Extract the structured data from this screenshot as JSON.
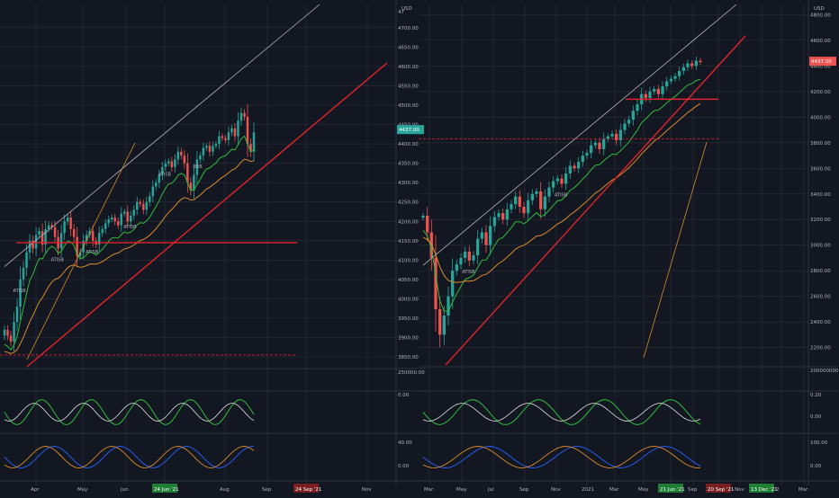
{
  "colors": {
    "background": "#131722",
    "grid": "#2a2e39",
    "up": "#26a69a",
    "down": "#ef5350",
    "trend_red": "#e0242b",
    "ema_green": "#2fbd3a",
    "sma_orange": "#d98b2b",
    "channel": "#b2b5be",
    "axis_text": "#b2b5be",
    "badge_green": "#1e7e34",
    "badge_red": "#7a1f1f"
  },
  "chart_data": [
    {
      "type": "line",
      "name": "left-panel",
      "title": "",
      "currency": "USD",
      "last_price": 4437.0,
      "last_price_label": "4437.00",
      "ylim": [
        3820,
        4760
      ],
      "yticks": [
        3850,
        3900,
        3950,
        4000,
        4050,
        4100,
        4150,
        4200,
        4250,
        4300,
        4350,
        4400,
        4450,
        4500,
        4550,
        4600,
        4650,
        4700
      ],
      "ytick_labels": [
        "3850.00",
        "3900.00",
        "3950.00",
        "4000.00",
        "4050.00",
        "4100.00",
        "4150.00",
        "4200.00",
        "4250.00",
        "4300.00",
        "4350.00",
        "4400.00",
        "4450.00",
        "4500.00",
        "4550.00",
        "4600.00",
        "4650.00",
        "4700.00"
      ],
      "ytop_label": "47",
      "xticks": [
        "Apr",
        "May",
        "Jun",
        "24 Jun '21",
        "Aug",
        "Sep",
        "24 Sep '21",
        "Nov"
      ],
      "highlight_x": [
        "24 Jun '21",
        "24 Sep '21"
      ],
      "price_series": [
        3920,
        3905,
        3890,
        3940,
        3980,
        4050,
        4080,
        4120,
        4150,
        4130,
        4165,
        4175,
        4140,
        4180,
        4190,
        4185,
        4160,
        4130,
        4170,
        4200,
        4210,
        4180,
        4160,
        4110,
        4120,
        4150,
        4165,
        4175,
        4150,
        4140,
        4170,
        4180,
        4195,
        4205,
        4210,
        4200,
        4190,
        4220,
        4225,
        4200,
        4215,
        4230,
        4250,
        4245,
        4230,
        4250,
        4265,
        4290,
        4300,
        4320,
        4340,
        4350,
        4355,
        4340,
        4360,
        4380,
        4370,
        4350,
        4300,
        4280,
        4320,
        4360,
        4370,
        4390,
        4395,
        4380,
        4395,
        4400,
        4420,
        4415,
        4410,
        4430,
        4440,
        4420,
        4460,
        4480,
        4470,
        4400,
        4380,
        4430
      ],
      "annotations": [
        "ATISB",
        "ATISB",
        "ATISB",
        "ATISB",
        "ATISB",
        "BRB"
      ],
      "support_level": 4145,
      "dashed_level": 3855,
      "indicators": {
        "volume_label": "250000.00",
        "osc1_label": "0.00",
        "osc2_labels": [
          "40.00",
          "0.00"
        ]
      }
    },
    {
      "type": "line",
      "name": "right-panel",
      "title": "",
      "currency": "USD",
      "last_price": 4437.0,
      "last_price_label": "4437.00",
      "ylim": [
        2050,
        4880
      ],
      "yticks": [
        2200,
        2400,
        2600,
        2800,
        3000,
        3200,
        3400,
        3600,
        3800,
        4000,
        4200,
        4400,
        4600,
        4800
      ],
      "ytick_labels": [
        "2200.00",
        "2400.00",
        "2600.00",
        "2800.00",
        "3000.00",
        "3200.00",
        "3400.00",
        "3600.00",
        "3800.00",
        "4000.00",
        "4200.00",
        "4400.00",
        "4600.00",
        "4800.00"
      ],
      "xticks": [
        "Mar",
        "May",
        "Jul",
        "Sep",
        "Nov",
        "2021",
        "Mar",
        "May",
        "21 Jun '21",
        "Sep",
        "20 Sep '21",
        "Nov",
        "13 Dec '21",
        "2",
        "Mar"
      ],
      "highlight_x": [
        "21 Jun '21",
        "20 Sep '21",
        "13 Dec '21"
      ],
      "price_series": [
        3230,
        3100,
        2900,
        2500,
        2300,
        2450,
        2600,
        2800,
        2850,
        2900,
        2950,
        2880,
        2920,
        3050,
        3100,
        3000,
        3150,
        3220,
        3250,
        3200,
        3280,
        3320,
        3380,
        3300,
        3250,
        3350,
        3400,
        3420,
        3280,
        3380,
        3450,
        3500,
        3520,
        3480,
        3560,
        3620,
        3600,
        3650,
        3700,
        3720,
        3780,
        3800,
        3750,
        3830,
        3850,
        3870,
        3820,
        3900,
        3950,
        3980,
        4050,
        4100,
        4180,
        4150,
        4200,
        4220,
        4180,
        4240,
        4280,
        4300,
        4320,
        4360,
        4390,
        4420,
        4400,
        4440,
        4430
      ],
      "annotations": [
        "ATISB",
        "ATISB"
      ],
      "support_level": 4140,
      "dashed_level": 3830,
      "indicators": {
        "volume_label": "200000000.00",
        "osc1_labels": [
          "0.20",
          "0.00"
        ],
        "osc2_labels": [
          "100.00",
          "0.00"
        ]
      }
    }
  ]
}
